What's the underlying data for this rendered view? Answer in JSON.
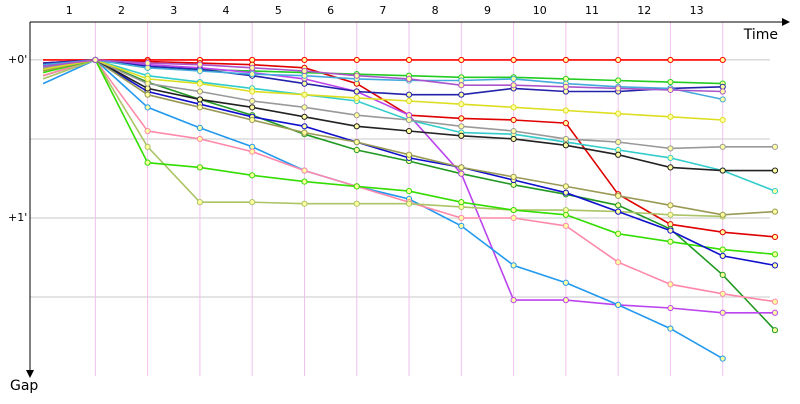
{
  "chart_data": {
    "type": "line",
    "x_label": "Time",
    "y_label": "Gap",
    "x": [
      0,
      1,
      2,
      3,
      4,
      5,
      6,
      7,
      8,
      9,
      10,
      11,
      12,
      13,
      14
    ],
    "xlim": [
      -0.25,
      14
    ],
    "xticks": [
      1,
      2,
      3,
      4,
      5,
      6,
      7,
      8,
      9,
      10,
      11,
      12,
      13
    ],
    "ylim": [
      -0.24,
      2.0
    ],
    "yticks": [
      {
        "value": 0,
        "label": "+0'"
      },
      {
        "value": 0.5,
        "label": null
      },
      {
        "value": 1,
        "label": "+1'"
      },
      {
        "value": 1.5,
        "label": null
      }
    ],
    "grid": true,
    "series": [
      {
        "color": "#ff0000",
        "values": [
          0,
          0,
          0,
          0,
          0,
          0,
          0,
          0,
          0,
          0,
          0,
          0,
          0,
          0,
          null
        ]
      },
      {
        "color": "#e00000",
        "values": [
          0.02,
          0,
          0.01,
          0.02,
          0.03,
          0.05,
          0.15,
          0.35,
          0.37,
          0.38,
          0.4,
          0.85,
          1.04,
          1.09,
          1.12
        ]
      },
      {
        "color": "#22cc22",
        "values": [
          0.06,
          0,
          0.05,
          0.06,
          0.07,
          0.08,
          0.09,
          0.1,
          0.11,
          0.11,
          0.12,
          0.13,
          0.14,
          0.15,
          null
        ]
      },
      {
        "color": "#229922",
        "values": [
          0.1,
          0,
          0.14,
          0.25,
          0.35,
          0.47,
          0.57,
          0.64,
          0.72,
          0.79,
          0.85,
          0.92,
          1.07,
          1.36,
          1.71
        ]
      },
      {
        "color": "#bb44ee",
        "values": [
          0.05,
          0,
          0.03,
          0.05,
          0.08,
          0.12,
          0.2,
          0.35,
          0.72,
          1.52,
          1.52,
          1.55,
          1.57,
          1.6,
          1.6
        ]
      },
      {
        "color": "#2299ee",
        "values": [
          0.15,
          0,
          0.3,
          0.43,
          0.55,
          0.7,
          0.8,
          0.88,
          1.05,
          1.3,
          1.41,
          1.55,
          1.7,
          1.89,
          null
        ]
      },
      {
        "color": "#ff88aa",
        "values": [
          0.1,
          0,
          0.45,
          0.5,
          0.58,
          0.7,
          0.8,
          0.9,
          1.0,
          1.0,
          1.05,
          1.28,
          1.42,
          1.48,
          1.53
        ]
      },
      {
        "color": "#aac466",
        "values": [
          0.12,
          0,
          0.55,
          0.9,
          0.9,
          0.91,
          0.91,
          0.91,
          0.93,
          0.95,
          0.95,
          0.96,
          0.98,
          0.99,
          null
        ]
      },
      {
        "color": "#33dd00",
        "values": [
          0.08,
          0,
          0.65,
          0.68,
          0.73,
          0.77,
          0.8,
          0.83,
          0.9,
          0.95,
          0.98,
          1.1,
          1.15,
          1.2,
          1.23
        ]
      },
      {
        "color": "#1010cc",
        "values": [
          0.05,
          0,
          0.2,
          0.28,
          0.36,
          0.42,
          0.52,
          0.62,
          0.68,
          0.76,
          0.84,
          0.96,
          1.08,
          1.24,
          1.3
        ]
      },
      {
        "color": "#999955",
        "values": [
          0.07,
          0,
          0.22,
          0.3,
          0.38,
          0.46,
          0.52,
          0.6,
          0.68,
          0.74,
          0.8,
          0.86,
          0.92,
          0.98,
          0.96
        ]
      },
      {
        "color": "#33cccc",
        "values": [
          0.04,
          0,
          0.1,
          0.14,
          0.18,
          0.22,
          0.26,
          0.38,
          0.46,
          0.47,
          0.52,
          0.57,
          0.62,
          0.7,
          0.83
        ]
      },
      {
        "color": "#222222",
        "values": [
          0.03,
          0,
          0.18,
          0.25,
          0.3,
          0.36,
          0.42,
          0.45,
          0.48,
          0.5,
          0.54,
          0.6,
          0.68,
          0.7,
          0.7
        ]
      },
      {
        "color": "#999999",
        "values": [
          0.05,
          0,
          0.15,
          0.2,
          0.26,
          0.3,
          0.35,
          0.38,
          0.42,
          0.45,
          0.5,
          0.52,
          0.56,
          0.55,
          0.55
        ]
      },
      {
        "color": "#dddd22",
        "values": [
          0.06,
          0,
          0.12,
          0.15,
          0.2,
          0.22,
          0.24,
          0.26,
          0.28,
          0.3,
          0.32,
          0.34,
          0.36,
          0.38,
          null
        ]
      },
      {
        "color": "#2222aa",
        "values": [
          0.02,
          0,
          0.04,
          0.06,
          0.1,
          0.15,
          0.2,
          0.22,
          0.22,
          0.18,
          0.2,
          0.2,
          0.18,
          0.17,
          null
        ]
      },
      {
        "color": "#44aadd",
        "values": [
          0.03,
          0,
          0.05,
          0.07,
          0.09,
          0.1,
          0.12,
          0.13,
          0.13,
          0.12,
          0.15,
          0.17,
          0.18,
          0.25,
          null
        ]
      },
      {
        "color": "#aa55cc",
        "values": [
          0.04,
          0,
          0.02,
          0.03,
          0.05,
          0.07,
          0.1,
          0.12,
          0.16,
          0.16,
          0.17,
          0.18,
          0.19,
          0.2,
          null
        ]
      }
    ]
  }
}
